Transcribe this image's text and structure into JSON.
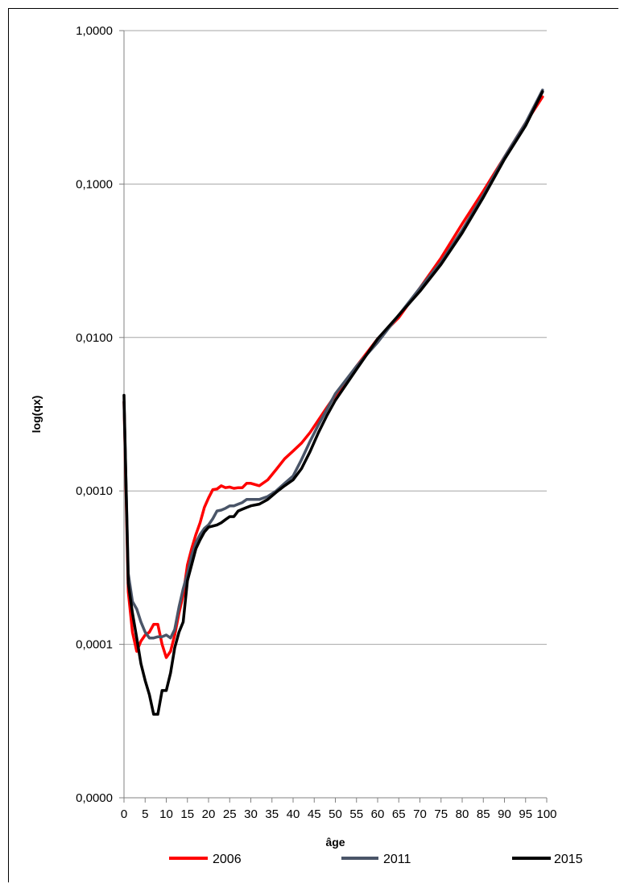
{
  "chart_data": {
    "type": "line",
    "xlabel": "âge",
    "ylabel": "log(qx)",
    "xlim": [
      0,
      100
    ],
    "ylim": [
      1e-05,
      1
    ],
    "yscale": "log",
    "grid": "horizontal",
    "legend": "bottom",
    "x_ticks": [
      "0",
      "5",
      "10",
      "15",
      "20",
      "25",
      "30",
      "35",
      "40",
      "45",
      "50",
      "55",
      "60",
      "65",
      "70",
      "75",
      "80",
      "85",
      "90",
      "95",
      "100"
    ],
    "y_ticks": [
      {
        "value": 1,
        "label": "1,0000"
      },
      {
        "value": 0.1,
        "label": "0,1000"
      },
      {
        "value": 0.01,
        "label": "0,0100"
      },
      {
        "value": 0.001,
        "label": "0,0010"
      },
      {
        "value": 0.0001,
        "label": "0,0001"
      },
      {
        "value": 1e-05,
        "label": "0,0000"
      }
    ],
    "series": [
      {
        "name": "2006",
        "color": "#ff0000",
        "x": [
          0,
          1,
          2,
          3,
          4,
          5,
          6,
          7,
          8,
          9,
          10,
          11,
          12,
          13,
          14,
          15,
          16,
          17,
          18,
          19,
          20,
          21,
          22,
          23,
          24,
          25,
          26,
          27,
          28,
          29,
          30,
          32,
          34,
          36,
          38,
          40,
          42,
          44,
          46,
          48,
          50,
          55,
          60,
          65,
          70,
          75,
          80,
          85,
          90,
          95,
          99
        ],
        "values": [
          0.0038,
          0.00022,
          0.00012,
          9e-05,
          0.000105,
          0.000115,
          0.00012,
          0.000135,
          0.000135,
          0.0001,
          8.2e-05,
          9e-05,
          0.000115,
          0.00016,
          0.00021,
          0.00033,
          0.00042,
          0.00052,
          0.00062,
          0.00078,
          0.0009,
          0.00102,
          0.00103,
          0.00108,
          0.00105,
          0.00106,
          0.00104,
          0.00105,
          0.00105,
          0.00112,
          0.00112,
          0.00108,
          0.00118,
          0.00138,
          0.00162,
          0.00182,
          0.00205,
          0.0024,
          0.0029,
          0.0035,
          0.0042,
          0.0065,
          0.0098,
          0.0135,
          0.021,
          0.033,
          0.055,
          0.09,
          0.15,
          0.25,
          0.37
        ]
      },
      {
        "name": "2011",
        "color": "#4a5568",
        "x": [
          0,
          1,
          2,
          3,
          4,
          5,
          6,
          7,
          8,
          9,
          10,
          11,
          12,
          13,
          14,
          15,
          16,
          17,
          18,
          19,
          20,
          21,
          22,
          23,
          24,
          25,
          26,
          27,
          28,
          29,
          30,
          32,
          34,
          36,
          38,
          40,
          42,
          44,
          46,
          48,
          50,
          55,
          60,
          65,
          70,
          75,
          80,
          85,
          90,
          95,
          99
        ],
        "values": [
          0.0038,
          0.00029,
          0.00019,
          0.00017,
          0.00014,
          0.00012,
          0.00011,
          0.00011,
          0.000112,
          0.000112,
          0.000115,
          0.00011,
          0.000125,
          0.000175,
          0.00023,
          0.00029,
          0.00038,
          0.00046,
          0.00052,
          0.00057,
          0.0006,
          0.00066,
          0.00074,
          0.00075,
          0.00077,
          0.0008,
          0.0008,
          0.00082,
          0.00084,
          0.00088,
          0.00088,
          0.00088,
          0.00092,
          0.001,
          0.00112,
          0.00125,
          0.0016,
          0.0021,
          0.0027,
          0.0034,
          0.0043,
          0.0065,
          0.0093,
          0.014,
          0.021,
          0.031,
          0.05,
          0.085,
          0.15,
          0.25,
          0.41
        ]
      },
      {
        "name": "2015",
        "color": "#000000",
        "x": [
          0,
          1,
          2,
          3,
          4,
          5,
          6,
          7,
          8,
          9,
          10,
          11,
          12,
          13,
          14,
          15,
          16,
          17,
          18,
          19,
          20,
          21,
          22,
          23,
          24,
          25,
          26,
          27,
          28,
          29,
          30,
          32,
          34,
          36,
          38,
          40,
          42,
          44,
          46,
          48,
          50,
          55,
          60,
          65,
          70,
          75,
          80,
          85,
          90,
          95,
          99
        ],
        "values": [
          0.0042,
          0.00025,
          0.00016,
          0.00011,
          7.5e-05,
          5.8e-05,
          4.7e-05,
          3.5e-05,
          3.5e-05,
          5e-05,
          5e-05,
          6.5e-05,
          9.5e-05,
          0.00012,
          0.00014,
          0.00026,
          0.00033,
          0.00042,
          0.00048,
          0.00054,
          0.00058,
          0.00059,
          0.0006,
          0.00062,
          0.00065,
          0.00068,
          0.00068,
          0.00074,
          0.00076,
          0.00078,
          0.0008,
          0.00082,
          0.00088,
          0.00098,
          0.00108,
          0.00118,
          0.0014,
          0.0018,
          0.0024,
          0.0031,
          0.0039,
          0.0062,
          0.0098,
          0.014,
          0.02,
          0.03,
          0.048,
          0.082,
          0.145,
          0.24,
          0.4
        ]
      }
    ]
  }
}
